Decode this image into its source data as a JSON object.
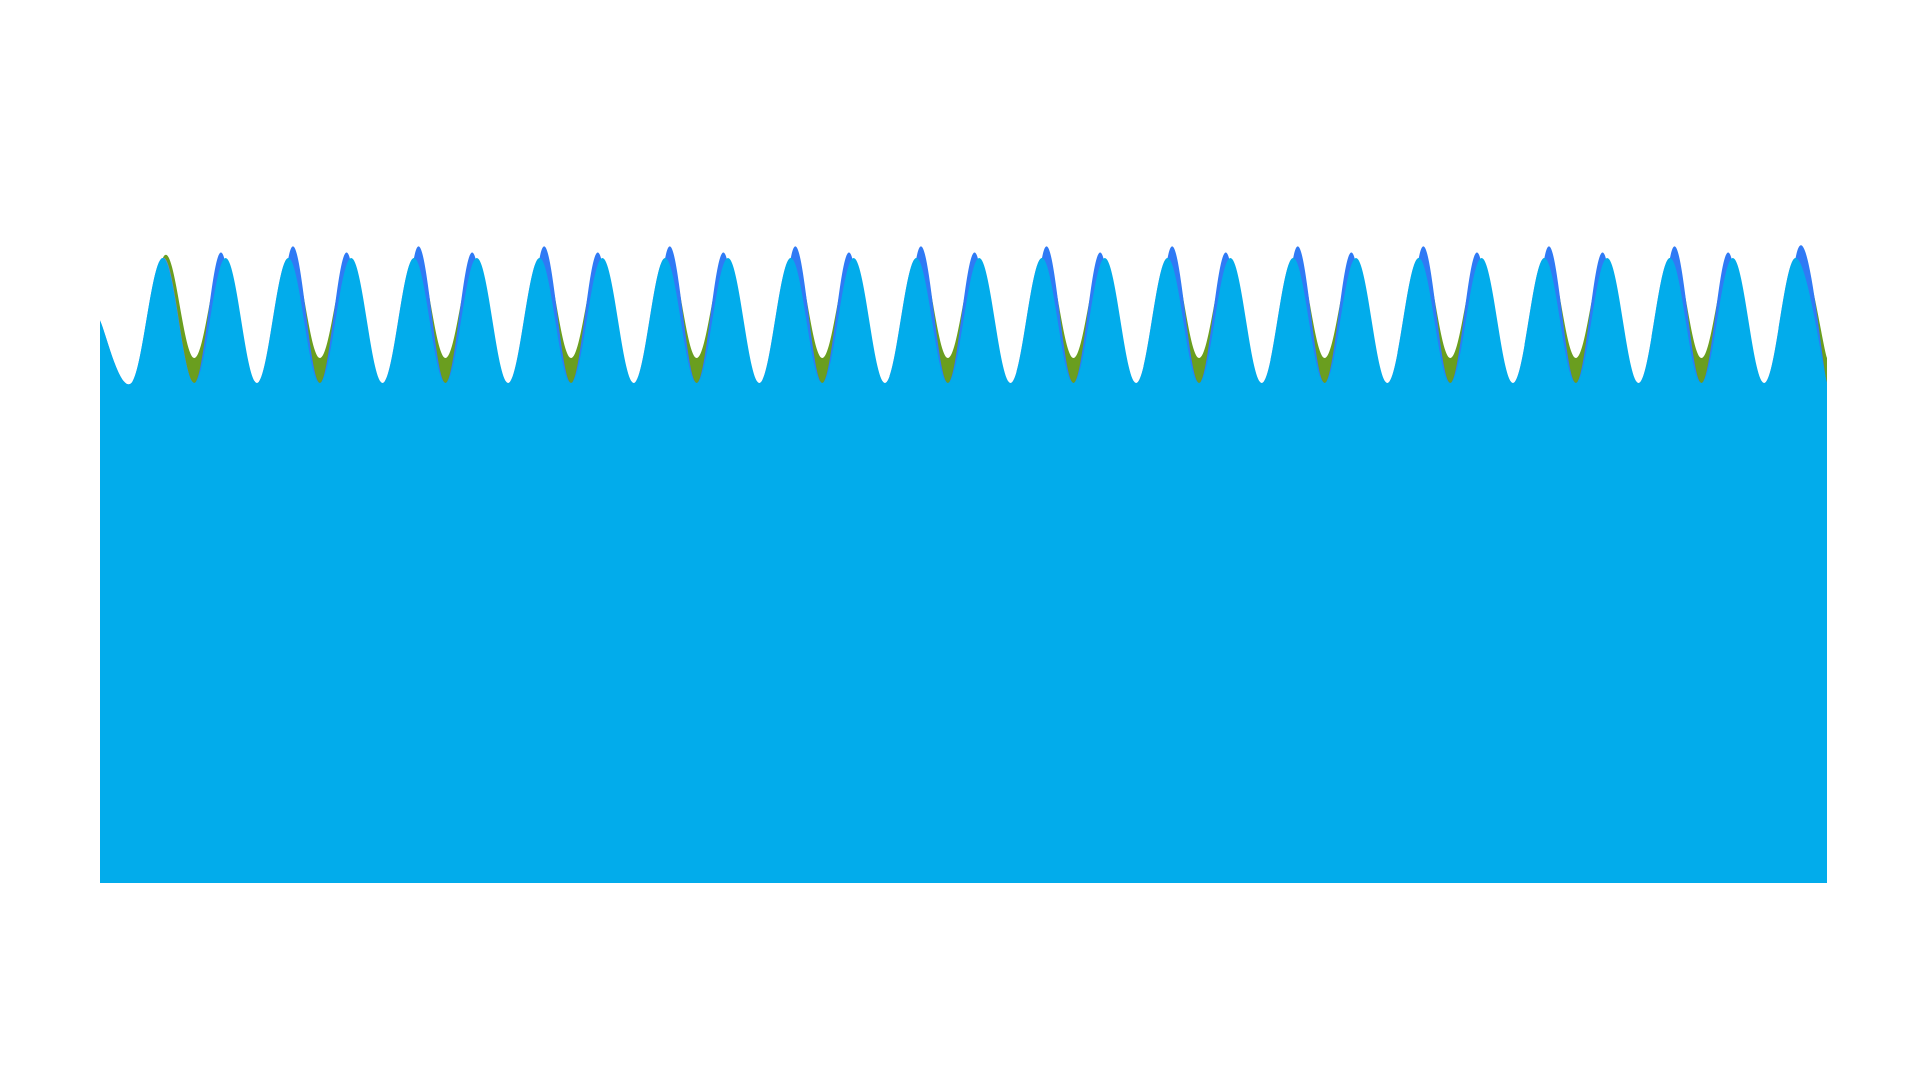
{
  "chart_data": {
    "type": "area",
    "stacked": false,
    "axes_visible": false,
    "grid": false,
    "legend": "none",
    "x_range": [
      0,
      55
    ],
    "y_range": [
      0,
      1
    ],
    "series": [
      {
        "color": "#6a9e1f",
        "role": "back",
        "period": 4,
        "samples": [
          0.9,
          0.62,
          1.0,
          0.84,
          0.99,
          0.62,
          1.0,
          0.84,
          0.99,
          0.62,
          1.0,
          0.84,
          0.99,
          0.62,
          1.0,
          0.84,
          0.99,
          0.62,
          1.0,
          0.84,
          0.99,
          0.62,
          1.0,
          0.84,
          0.99,
          0.62,
          1.0,
          0.84,
          0.99,
          0.62,
          1.0,
          0.84,
          0.99,
          0.62,
          1.0,
          0.84,
          0.99,
          0.62,
          1.0,
          0.84,
          0.99,
          0.62,
          1.0,
          0.84,
          0.99,
          0.62,
          1.0,
          0.84,
          0.99,
          0.62,
          1.0,
          0.84,
          0.99,
          0.62,
          1.0,
          0.84
        ]
      },
      {
        "color": "#6b88d8",
        "role": "middle",
        "period": 4,
        "samples": [
          0.9,
          0.74,
          1.0,
          0.8,
          0.99,
          0.8,
          1.0,
          0.8,
          0.99,
          0.8,
          1.0,
          0.8,
          0.99,
          0.8,
          1.0,
          0.8,
          0.99,
          0.8,
          1.0,
          0.8,
          0.99,
          0.8,
          1.0,
          0.8,
          0.99,
          0.8,
          1.0,
          0.8,
          0.99,
          0.8,
          1.0,
          0.8,
          0.99,
          0.8,
          1.0,
          0.8,
          0.99,
          0.8,
          1.0,
          0.8,
          0.99,
          0.8,
          1.0,
          0.8,
          0.99,
          0.8,
          1.0,
          0.8,
          0.99,
          0.8,
          1.0,
          0.8,
          0.99,
          0.8,
          1.0,
          0.8
        ]
      },
      {
        "color": "#2f7af5",
        "role": "front-spike",
        "period": 4,
        "samples": [
          0.9,
          0.8,
          1.0,
          0.8,
          0.99,
          0.28,
          1.0,
          0.8,
          0.99,
          0.28,
          1.0,
          0.8,
          0.99,
          0.28,
          1.0,
          0.8,
          0.99,
          0.28,
          1.0,
          0.8,
          0.99,
          0.28,
          1.0,
          0.8,
          0.99,
          0.28,
          1.0,
          0.8,
          0.99,
          0.28,
          1.0,
          0.8,
          0.99,
          0.28,
          1.0,
          0.8,
          0.99,
          0.28,
          1.0,
          0.8,
          0.99,
          0.28,
          1.0,
          0.8,
          0.99,
          0.28,
          1.0,
          0.8,
          0.99,
          0.28,
          1.0,
          0.8,
          0.99,
          0.28,
          1.0,
          0.8
        ]
      },
      {
        "color": "#02aceb",
        "role": "foreground",
        "period": 1,
        "samples": [
          0.9,
          0.8,
          1.0,
          0.8,
          1.0,
          0.8,
          1.0,
          0.8,
          1.0,
          0.8,
          1.0,
          0.8,
          1.0,
          0.8,
          1.0,
          0.8,
          1.0,
          0.8,
          1.0,
          0.8,
          1.0,
          0.8,
          1.0,
          0.8,
          1.0,
          0.8,
          1.0,
          0.8,
          1.0,
          0.8,
          1.0,
          0.8,
          1.0,
          0.8,
          1.0,
          0.8,
          1.0,
          0.8,
          1.0,
          0.8,
          1.0,
          0.8,
          1.0,
          0.8,
          1.0,
          0.8,
          1.0,
          0.8,
          1.0,
          0.8,
          1.0,
          0.8,
          1.0,
          0.8,
          1.0,
          0.8
        ]
      }
    ]
  }
}
